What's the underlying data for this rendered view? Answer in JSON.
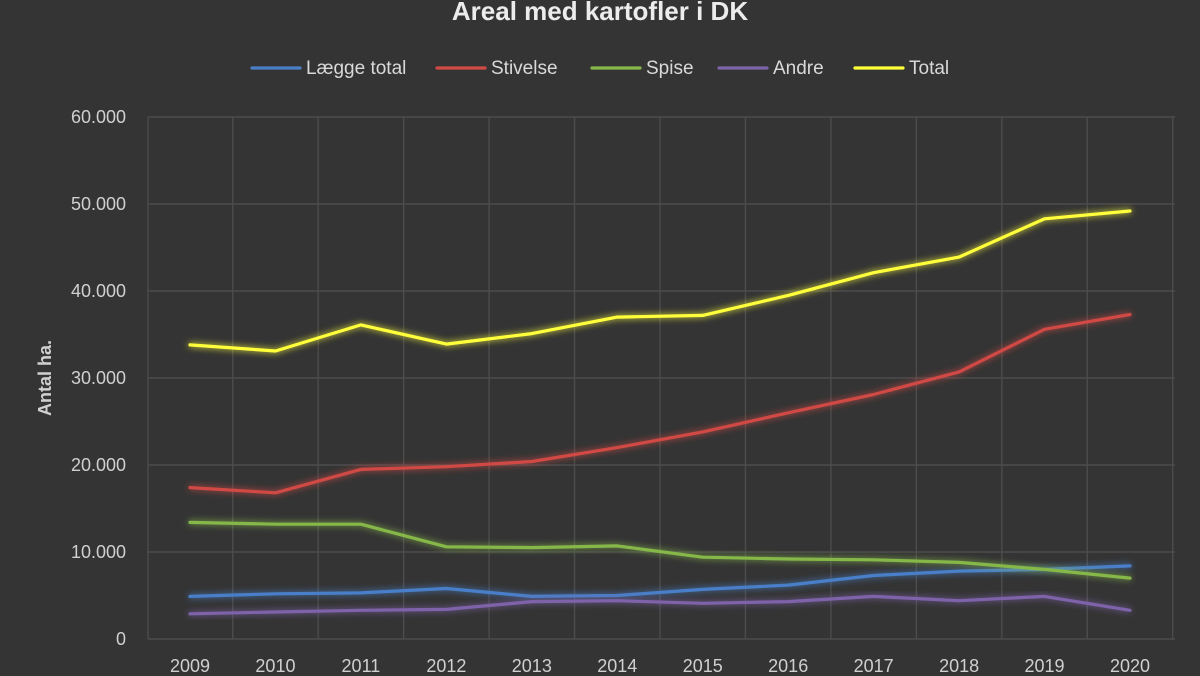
{
  "chart_data": {
    "type": "line",
    "title": "Areal med kartofler i DK",
    "ylabel": "Antal ha.",
    "xlabel": "",
    "ylim": [
      0,
      60000
    ],
    "yticks": [
      0,
      10000,
      20000,
      30000,
      40000,
      50000,
      60000
    ],
    "ytick_labels": [
      "0",
      "10.000",
      "20.000",
      "30.000",
      "40.000",
      "50.000",
      "60.000"
    ],
    "grid": true,
    "legend_position": "top",
    "x": [
      "2009",
      "2010",
      "2011",
      "2012",
      "2013",
      "2014",
      "2015",
      "2016",
      "2017",
      "2018",
      "2019",
      "2020"
    ],
    "series": [
      {
        "name": "Lægge total",
        "color": "#4a7fc8",
        "values": [
          4900,
          5200,
          5300,
          5800,
          4900,
          5000,
          5700,
          6200,
          7300,
          7800,
          8000,
          8400
        ]
      },
      {
        "name": "Stivelse",
        "color": "#d04a44",
        "values": [
          17400,
          16800,
          19500,
          19800,
          20400,
          22000,
          23800,
          26000,
          28100,
          30700,
          35600,
          37300
        ]
      },
      {
        "name": "Spise",
        "color": "#86b84a",
        "values": [
          13400,
          13200,
          13200,
          10600,
          10500,
          10700,
          9400,
          9200,
          9100,
          8800,
          8000,
          7000
        ]
      },
      {
        "name": "Andre",
        "color": "#7e63aa",
        "values": [
          2900,
          3100,
          3300,
          3400,
          4300,
          4400,
          4100,
          4300,
          4900,
          4400,
          4900,
          3300
        ]
      },
      {
        "name": "Total",
        "color": "#ffff3a",
        "values": [
          33800,
          33100,
          36100,
          33900,
          35100,
          37000,
          37200,
          39500,
          42100,
          43900,
          48300,
          49200
        ]
      }
    ]
  }
}
